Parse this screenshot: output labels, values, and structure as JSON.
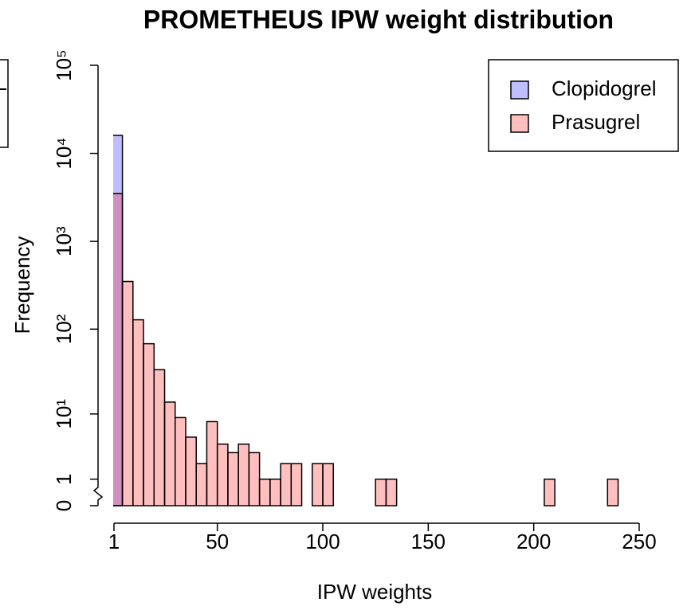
{
  "chart_data": {
    "type": "histogram",
    "title": "PROMETHEUS IPW weight distribution",
    "xlabel": "IPW weights",
    "ylabel": "Frequency",
    "bins": [
      0,
      5,
      10,
      15,
      20,
      25,
      30,
      35,
      40,
      45,
      50,
      55,
      60,
      65,
      70,
      75,
      80,
      85,
      90,
      95,
      100,
      105,
      110,
      115,
      120,
      125,
      130,
      135,
      140,
      145,
      150,
      155,
      160,
      165,
      170,
      175,
      180,
      185,
      190,
      195,
      200,
      205,
      210,
      215,
      220,
      225,
      230,
      235,
      240,
      245,
      250
    ],
    "series": [
      {
        "name": "Clopidogrel",
        "color": "#0000ff40",
        "values": [
          16000,
          0,
          0,
          0,
          0,
          0,
          0,
          0,
          0,
          0,
          0,
          0,
          0,
          0,
          0,
          0,
          0,
          0,
          0,
          0,
          0,
          0,
          0,
          0,
          0,
          0,
          0,
          0,
          0,
          0,
          0,
          0,
          0,
          0,
          0,
          0,
          0,
          0,
          0,
          0,
          0,
          0,
          0,
          0,
          0,
          0,
          0,
          0,
          0,
          0
        ]
      },
      {
        "name": "Prasugrel",
        "color": "#ff000040",
        "values": [
          3500,
          350,
          128,
          68,
          34,
          14,
          9,
          5,
          2,
          8,
          4,
          3,
          4,
          3,
          1,
          1,
          2,
          2,
          0,
          2,
          2,
          0,
          0,
          0,
          0,
          1,
          1,
          0,
          0,
          0,
          0,
          0,
          0,
          0,
          0,
          0,
          0,
          0,
          0,
          0,
          0,
          1,
          0,
          0,
          0,
          0,
          0,
          1,
          0,
          0
        ]
      }
    ],
    "xlim": [
      1,
      250
    ],
    "xticks": [
      1,
      50,
      100,
      150,
      200,
      250
    ],
    "ylim": [
      0,
      100000
    ],
    "ylog": true,
    "yticks": [
      0,
      1,
      {
        "value": 10,
        "label": "10¹"
      },
      {
        "value": 100,
        "label": "10²"
      },
      {
        "value": 1000,
        "label": "10³"
      },
      {
        "value": 10000,
        "label": "10⁴"
      },
      {
        "value": 100000,
        "label": "10⁵"
      }
    ],
    "legend": "top-right"
  }
}
